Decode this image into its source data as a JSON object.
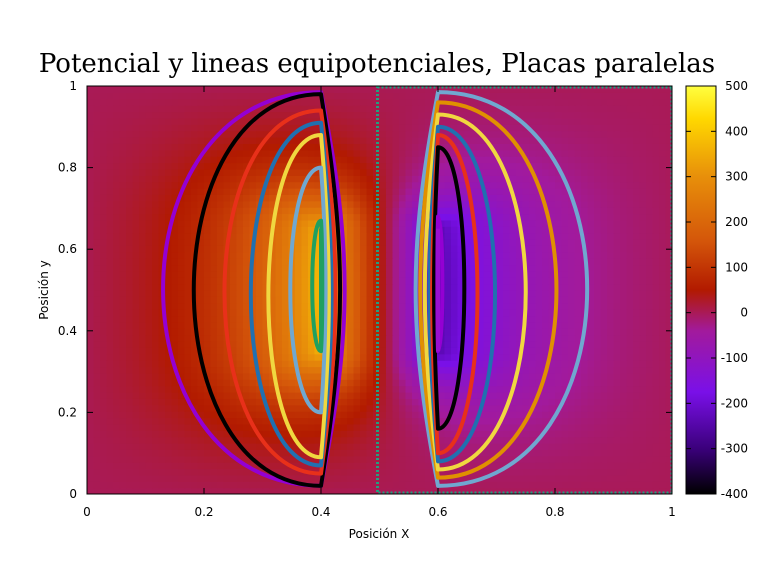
{
  "chart_data": {
    "type": "heatmap",
    "title": "Potencial y lineas equipotenciales, Placas paralelas",
    "xlabel": "Posición X",
    "ylabel": "Posición y",
    "xlim": [
      0,
      1
    ],
    "ylim": [
      0,
      1
    ],
    "x_ticks": [
      "0",
      "0.2",
      "0.4",
      "0.6",
      "0.8",
      "1"
    ],
    "y_ticks": [
      "0",
      "0.2",
      "0.4",
      "0.6",
      "0.8",
      "1"
    ],
    "colorbar": {
      "range": [
        -400,
        500
      ],
      "ticks": [
        "500",
        "400",
        "300",
        "200",
        "100",
        "0",
        "-100",
        "-200",
        "-300",
        "-400"
      ],
      "palette": [
        "#000000",
        "#3a007a",
        "#7a10e8",
        "#a21a9c",
        "#b21a00",
        "#d4560a",
        "#e8900a",
        "#ffd800",
        "#ffff40"
      ]
    },
    "plates": [
      {
        "x": 0.4,
        "y_range": [
          0.35,
          0.65
        ],
        "potential": 500
      },
      {
        "x": 0.6,
        "y_range": [
          0.35,
          0.65
        ],
        "potential": -400
      }
    ],
    "equipotential_colors": [
      "#9400d3",
      "#000000",
      "#e8301a",
      "#2070b0",
      "#f0d840",
      "#e09000",
      "#70a8d0",
      "#20a060"
    ]
  }
}
